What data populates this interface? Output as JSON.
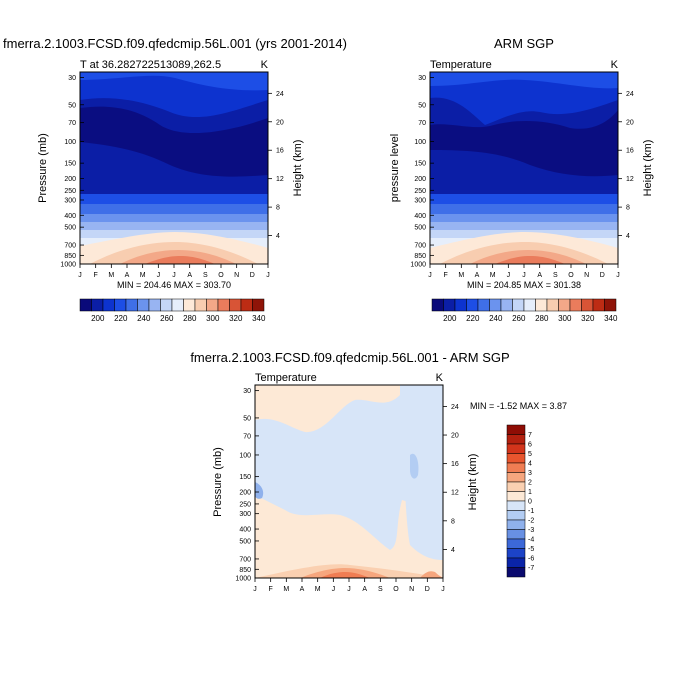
{
  "chart_data": [
    {
      "type": "contour",
      "title": "fmerra.2.1003.FCSD.f09.qfedcmip.56L.001 (yrs 2001-2014)",
      "subtitle_left": "T at 36.282722513089,262.5",
      "subtitle_right": "K",
      "ylabel": "Pressure (mb)",
      "ylabel_right": "Height (km)",
      "x_ticks": [
        "J",
        "F",
        "M",
        "A",
        "M",
        "J",
        "J",
        "A",
        "S",
        "O",
        "N",
        "D",
        "J"
      ],
      "y_ticks": [
        30,
        50,
        70,
        100,
        150,
        200,
        250,
        300,
        400,
        500,
        700,
        850,
        1000
      ],
      "height_ticks": [
        24,
        20,
        16,
        12,
        8,
        4
      ],
      "stats": "MIN = 204.46 MAX = 303.70",
      "colorbar_labels": [
        "200",
        "220",
        "240",
        "260",
        "280",
        "300",
        "320",
        "340"
      ]
    },
    {
      "type": "contour",
      "title": "ARM SGP",
      "subtitle_left": "Temperature",
      "subtitle_right": "K",
      "ylabel": "pressure level",
      "ylabel_right": "Height (km)",
      "x_ticks": [
        "J",
        "F",
        "M",
        "A",
        "M",
        "J",
        "J",
        "A",
        "S",
        "O",
        "N",
        "D",
        "J"
      ],
      "y_ticks": [
        30,
        50,
        70,
        100,
        150,
        200,
        250,
        300,
        400,
        500,
        700,
        850,
        1000
      ],
      "height_ticks": [
        24,
        20,
        16,
        12,
        8,
        4
      ],
      "stats": "MIN = 204.85 MAX = 301.38",
      "colorbar_labels": [
        "200",
        "220",
        "240",
        "260",
        "280",
        "300",
        "320",
        "340"
      ]
    },
    {
      "type": "contour",
      "title": "fmerra.2.1003.FCSD.f09.qfedcmip.56L.001 - ARM SGP",
      "subtitle_left": "Temperature",
      "subtitle_right": "K",
      "ylabel": "Pressure (mb)",
      "ylabel_right": "Height (km)",
      "x_ticks": [
        "J",
        "F",
        "M",
        "A",
        "M",
        "J",
        "J",
        "A",
        "S",
        "O",
        "N",
        "D",
        "J"
      ],
      "y_ticks": [
        30,
        50,
        70,
        100,
        150,
        200,
        250,
        300,
        400,
        500,
        700,
        850,
        1000
      ],
      "height_ticks": [
        24,
        20,
        16,
        12,
        8,
        4
      ],
      "stats": "MIN =  -1.52 MAX =   3.87",
      "colorbar_labels": [
        "7",
        "6",
        "5",
        "4",
        "3",
        "2",
        "1",
        "0",
        "-1",
        "-2",
        "-3",
        "-4",
        "-5",
        "-6",
        "-7"
      ]
    }
  ],
  "colors": {
    "temp_scale": [
      "#0a0a7a",
      "#0b1ea6",
      "#0d33cf",
      "#1d4ee6",
      "#3f6fe8",
      "#6b93ee",
      "#98b4f2",
      "#c4d6f7",
      "#e6eefb",
      "#fde9d8",
      "#f8cdb0",
      "#f3a888",
      "#ea7c5c",
      "#d85436",
      "#bd2c14",
      "#8f1408"
    ],
    "diff_scale": [
      "#8f0d05",
      "#b3200f",
      "#d2341b",
      "#e8552e",
      "#f07d53",
      "#f6a67e",
      "#fad0b1",
      "#fde9d6",
      "#d7e5f8",
      "#b3cdf3",
      "#8fb1ec",
      "#6890e3",
      "#3c68d8",
      "#1c43c7",
      "#0a24a8",
      "#0a0a6e"
    ]
  }
}
